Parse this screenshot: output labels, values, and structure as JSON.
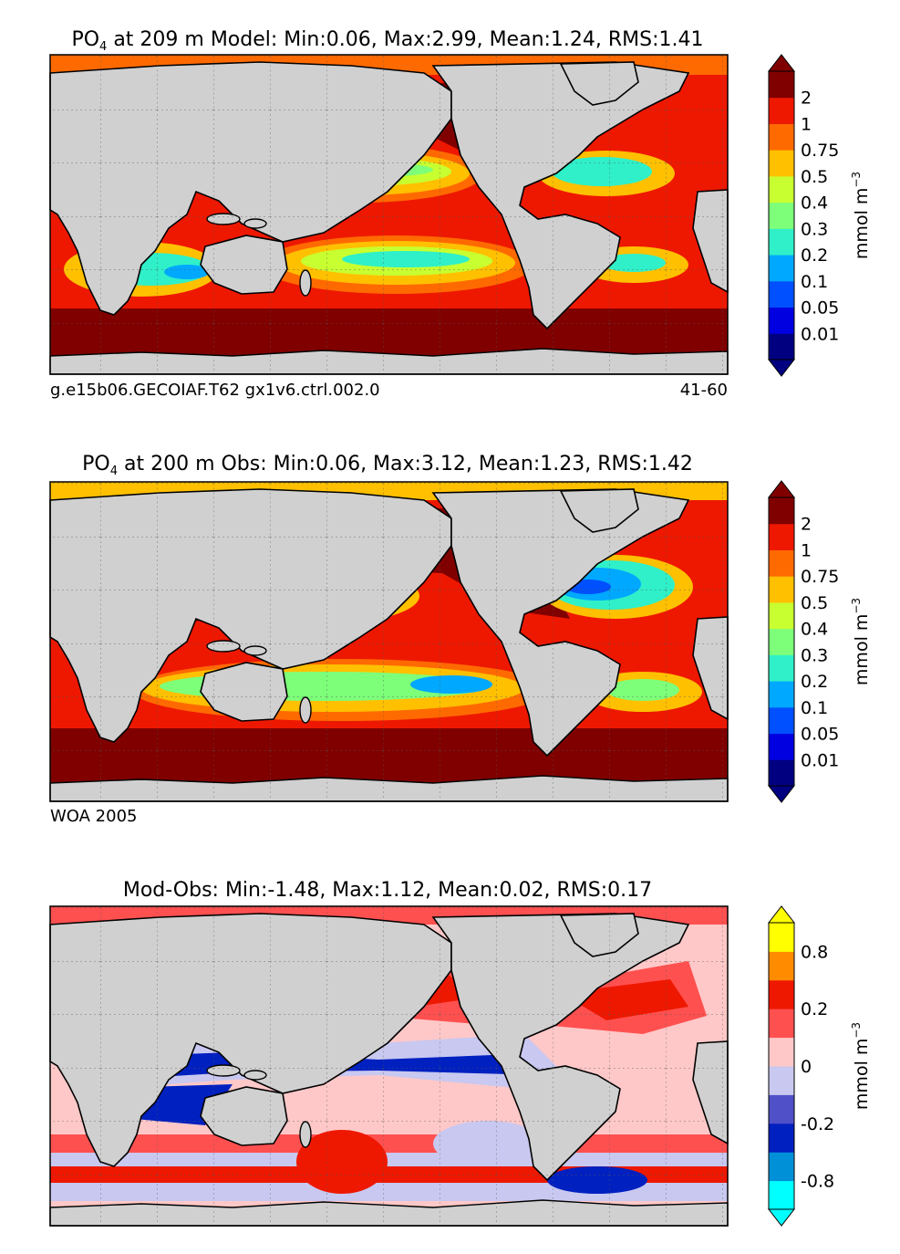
{
  "figure": {
    "panels": [
      {
        "id": "model",
        "title_var": "PO",
        "title_sub": "4",
        "title_rest": " at 209 m Model: Min:0.06, Max:2.99, Mean:1.24, RMS:1.41",
        "caption_left": "g.e15b06.GECOIAF.T62 gx1v6.ctrl.002.0",
        "caption_right": "41-60"
      },
      {
        "id": "obs",
        "title_var": "PO",
        "title_sub": "4",
        "title_rest": " at 200 m Obs: Min:0.06, Max:3.12, Mean:1.23, RMS:1.42",
        "caption_left": "WOA 2005",
        "caption_right": ""
      },
      {
        "id": "diff",
        "title_var": "",
        "title_sub": "",
        "title_rest": "Mod-Obs: Min:-1.48, Max:1.12, Mean:0.02, RMS:0.17",
        "caption_left": "",
        "caption_right": ""
      }
    ],
    "colorbars": [
      {
        "id": "cb-model",
        "units_main": "mmol m",
        "units_sup": "−3",
        "colors": [
          "#000080",
          "#0000e0",
          "#0050ff",
          "#00a8ff",
          "#2ff0c8",
          "#7dff7a",
          "#c8ff30",
          "#ffc000",
          "#ff6a00",
          "#ee1800",
          "#800000"
        ],
        "tick_labels": [
          "0.01",
          "0.05",
          "0.1",
          "0.2",
          "0.3",
          "0.4",
          "0.5",
          "0.75",
          "1",
          "2"
        ],
        "extend_min_color": "#000080",
        "extend_max_color": "#800000"
      },
      {
        "id": "cb-obs",
        "units_main": "mmol m",
        "units_sup": "−3",
        "colors": [
          "#000080",
          "#0000e0",
          "#0050ff",
          "#00a8ff",
          "#2ff0c8",
          "#7dff7a",
          "#c8ff30",
          "#ffc000",
          "#ff6a00",
          "#ee1800",
          "#800000"
        ],
        "tick_labels": [
          "0.01",
          "0.05",
          "0.1",
          "0.2",
          "0.3",
          "0.4",
          "0.5",
          "0.75",
          "1",
          "2"
        ],
        "extend_min_color": "#000080",
        "extend_max_color": "#800000"
      },
      {
        "id": "cb-diff",
        "units_main": "mmol m",
        "units_sup": "−3",
        "colors": [
          "#00ffff",
          "#0090d8",
          "#0020c0",
          "#5050c8",
          "#c8c8f0",
          "#ffc8c8",
          "#ff5050",
          "#ee1800",
          "#ff8c00",
          "#ffff00"
        ],
        "tick_labels": [
          "-0.8",
          "-0.2",
          "0",
          "0.2",
          "0.8"
        ],
        "tick_positions": [
          1,
          3,
          5,
          7,
          9
        ],
        "extend_min_color": "#00ffff",
        "extend_max_color": "#ffff00"
      }
    ],
    "chart_data": [
      {
        "type": "heatmap",
        "title": "PO4 at 209 m Model: Min:0.06, Max:2.99, Mean:1.24, RMS:1.41",
        "variable": "PO4",
        "depth_m": 209,
        "source": "g.e15b06.GECOIAF.T62 gx1v6.ctrl.002.0",
        "years": "41-60",
        "stats": {
          "min": 0.06,
          "max": 2.99,
          "mean": 1.24,
          "rms": 1.41
        },
        "units": "mmol m^-3",
        "levels": [
          0.01,
          0.05,
          0.1,
          0.2,
          0.3,
          0.4,
          0.5,
          0.75,
          1,
          2
        ]
      },
      {
        "type": "heatmap",
        "title": "PO4 at 200 m Obs: Min:0.06, Max:3.12, Mean:1.23, RMS:1.42",
        "variable": "PO4",
        "depth_m": 200,
        "source": "WOA 2005",
        "stats": {
          "min": 0.06,
          "max": 3.12,
          "mean": 1.23,
          "rms": 1.42
        },
        "units": "mmol m^-3",
        "levels": [
          0.01,
          0.05,
          0.1,
          0.2,
          0.3,
          0.4,
          0.5,
          0.75,
          1,
          2
        ]
      },
      {
        "type": "heatmap",
        "title": "Mod-Obs: Min:-1.48, Max:1.12, Mean:0.02, RMS:0.17",
        "stats": {
          "min": -1.48,
          "max": 1.12,
          "mean": 0.02,
          "rms": 0.17
        },
        "units": "mmol m^-3",
        "labeled_levels": [
          -0.8,
          -0.2,
          0,
          0.2,
          0.8
        ]
      }
    ]
  }
}
